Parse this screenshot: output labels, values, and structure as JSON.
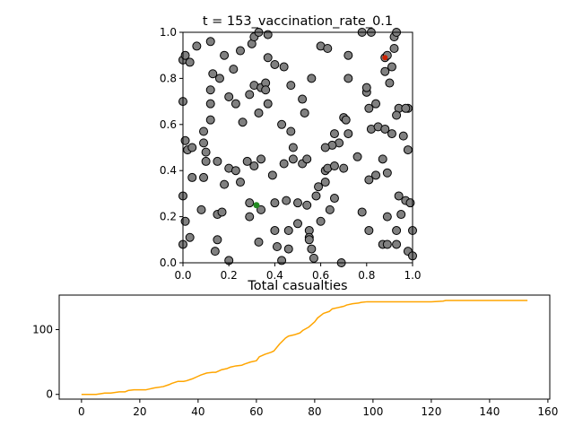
{
  "chart_data": [
    {
      "type": "scatter",
      "title": "t = 153_vaccination_rate_0.1",
      "xlabel": "",
      "ylabel": "",
      "xlim": [
        0,
        1
      ],
      "ylim": [
        0,
        1
      ],
      "x_ticks": [
        "0.0",
        "0.2",
        "0.4",
        "0.6",
        "0.8",
        "1.0"
      ],
      "y_ticks": [
        "0.0",
        "0.2",
        "0.4",
        "0.6",
        "0.8",
        "1.0"
      ],
      "grid": false,
      "legend": "none",
      "colors": {
        "default": "#808080",
        "infected": "#cc2200",
        "vaccinated": "#228b22",
        "edge": "#000000"
      },
      "points": [
        [
          0.0,
          0.88
        ],
        [
          0.01,
          0.9
        ],
        [
          0.03,
          0.87
        ],
        [
          0.06,
          0.94
        ],
        [
          0.12,
          0.96
        ],
        [
          0.18,
          0.9
        ],
        [
          0.22,
          0.84
        ],
        [
          0.25,
          0.92
        ],
        [
          0.3,
          0.95
        ],
        [
          0.31,
          0.98
        ],
        [
          0.33,
          1.0
        ],
        [
          0.37,
          0.99
        ],
        [
          0.37,
          0.89
        ],
        [
          0.4,
          0.86
        ],
        [
          0.44,
          0.85
        ],
        [
          0.13,
          0.82
        ],
        [
          0.16,
          0.8
        ],
        [
          0.31,
          0.77
        ],
        [
          0.34,
          0.76
        ],
        [
          0.36,
          0.78
        ],
        [
          0.36,
          0.75
        ],
        [
          0.47,
          0.77
        ],
        [
          0.56,
          0.8
        ],
        [
          0.6,
          0.94
        ],
        [
          0.63,
          0.93
        ],
        [
          0.72,
          0.9
        ],
        [
          0.78,
          1.0
        ],
        [
          0.82,
          1.0
        ],
        [
          0.88,
          0.89
        ],
        [
          0.89,
          0.9
        ],
        [
          0.92,
          0.93
        ],
        [
          0.92,
          0.98
        ],
        [
          0.93,
          1.0
        ],
        [
          0.0,
          0.7
        ],
        [
          0.12,
          0.75
        ],
        [
          0.12,
          0.69
        ],
        [
          0.2,
          0.72
        ],
        [
          0.23,
          0.69
        ],
        [
          0.29,
          0.73
        ],
        [
          0.37,
          0.69
        ],
        [
          0.52,
          0.71
        ],
        [
          0.53,
          0.65
        ],
        [
          0.72,
          0.8
        ],
        [
          0.8,
          0.74
        ],
        [
          0.8,
          0.76
        ],
        [
          0.81,
          0.67
        ],
        [
          0.84,
          0.69
        ],
        [
          0.88,
          0.83
        ],
        [
          0.9,
          0.78
        ],
        [
          0.91,
          0.85
        ],
        [
          0.94,
          0.67
        ],
        [
          0.98,
          0.67
        ],
        [
          0.97,
          0.67
        ],
        [
          0.12,
          0.62
        ],
        [
          0.09,
          0.57
        ],
        [
          0.09,
          0.52
        ],
        [
          0.01,
          0.53
        ],
        [
          0.02,
          0.49
        ],
        [
          0.04,
          0.5
        ],
        [
          0.1,
          0.48
        ],
        [
          0.26,
          0.61
        ],
        [
          0.33,
          0.65
        ],
        [
          0.43,
          0.6
        ],
        [
          0.47,
          0.57
        ],
        [
          0.7,
          0.63
        ],
        [
          0.71,
          0.62
        ],
        [
          0.72,
          0.56
        ],
        [
          0.68,
          0.52
        ],
        [
          0.65,
          0.51
        ],
        [
          0.62,
          0.5
        ],
        [
          0.66,
          0.56
        ],
        [
          0.82,
          0.58
        ],
        [
          0.85,
          0.59
        ],
        [
          0.88,
          0.58
        ],
        [
          0.91,
          0.56
        ],
        [
          0.93,
          0.64
        ],
        [
          0.96,
          0.55
        ],
        [
          0.98,
          0.49
        ],
        [
          0.1,
          0.44
        ],
        [
          0.15,
          0.44
        ],
        [
          0.09,
          0.37
        ],
        [
          0.04,
          0.37
        ],
        [
          0.18,
          0.34
        ],
        [
          0.2,
          0.41
        ],
        [
          0.23,
          0.4
        ],
        [
          0.25,
          0.35
        ],
        [
          0.28,
          0.44
        ],
        [
          0.31,
          0.42
        ],
        [
          0.34,
          0.45
        ],
        [
          0.39,
          0.38
        ],
        [
          0.44,
          0.43
        ],
        [
          0.48,
          0.45
        ],
        [
          0.48,
          0.5
        ],
        [
          0.52,
          0.43
        ],
        [
          0.54,
          0.45
        ],
        [
          0.59,
          0.33
        ],
        [
          0.62,
          0.35
        ],
        [
          0.62,
          0.4
        ],
        [
          0.63,
          0.41
        ],
        [
          0.66,
          0.42
        ],
        [
          0.7,
          0.41
        ],
        [
          0.76,
          0.46
        ],
        [
          0.81,
          0.36
        ],
        [
          0.84,
          0.38
        ],
        [
          0.87,
          0.45
        ],
        [
          0.89,
          0.39
        ],
        [
          0.0,
          0.29
        ],
        [
          0.01,
          0.18
        ],
        [
          0.03,
          0.11
        ],
        [
          0.08,
          0.23
        ],
        [
          0.15,
          0.21
        ],
        [
          0.17,
          0.22
        ],
        [
          0.15,
          0.1
        ],
        [
          0.14,
          0.05
        ],
        [
          0.2,
          0.01
        ],
        [
          0.29,
          0.2
        ],
        [
          0.29,
          0.26
        ],
        [
          0.34,
          0.23
        ],
        [
          0.4,
          0.26
        ],
        [
          0.4,
          0.14
        ],
        [
          0.45,
          0.27
        ],
        [
          0.46,
          0.14
        ],
        [
          0.5,
          0.17
        ],
        [
          0.5,
          0.26
        ],
        [
          0.54,
          0.25
        ],
        [
          0.58,
          0.29
        ],
        [
          0.6,
          0.18
        ],
        [
          0.64,
          0.23
        ],
        [
          0.66,
          0.28
        ],
        [
          0.78,
          0.22
        ],
        [
          0.81,
          0.14
        ],
        [
          0.89,
          0.2
        ],
        [
          0.93,
          0.14
        ],
        [
          0.94,
          0.29
        ],
        [
          0.95,
          0.21
        ],
        [
          0.97,
          0.27
        ],
        [
          0.99,
          0.26
        ],
        [
          0.33,
          0.09
        ],
        [
          0.41,
          0.07
        ],
        [
          0.46,
          0.06
        ],
        [
          0.55,
          0.14
        ],
        [
          0.55,
          0.11
        ],
        [
          0.55,
          0.1
        ],
        [
          0.56,
          0.06
        ],
        [
          0.57,
          0.02
        ],
        [
          0.69,
          0.0
        ],
        [
          0.43,
          0.01
        ],
        [
          0.87,
          0.08
        ],
        [
          0.89,
          0.08
        ],
        [
          0.93,
          0.08
        ],
        [
          0.98,
          0.05
        ],
        [
          1.0,
          0.03
        ],
        [
          1.0,
          0.14
        ],
        [
          0.0,
          0.08
        ]
      ],
      "infected_points": [
        [
          0.88,
          0.89
        ]
      ],
      "vaccinated_points": [
        [
          0.32,
          0.25
        ]
      ]
    },
    {
      "type": "line",
      "title": "Total casualties",
      "xlabel": "",
      "ylabel": "",
      "xlim": [
        -7.65,
        160.65
      ],
      "ylim": [
        -7.3,
        153.3
      ],
      "x_ticks": [
        0,
        20,
        40,
        60,
        80,
        100,
        120,
        140,
        160
      ],
      "y_ticks": [
        0,
        100
      ],
      "color": "#ffa500",
      "grid": false,
      "legend": "none",
      "x": [
        0,
        5,
        8,
        10,
        13,
        15,
        16,
        18,
        20,
        22,
        23,
        25,
        28,
        30,
        31,
        33,
        35,
        36,
        38,
        40,
        41,
        43,
        45,
        46,
        48,
        50,
        51,
        53,
        55,
        56,
        58,
        60,
        61,
        63,
        65,
        66,
        68,
        70,
        71,
        73,
        75,
        76,
        78,
        80,
        81,
        83,
        85,
        86,
        88,
        90,
        91,
        93,
        95,
        96,
        98,
        100,
        105,
        110,
        115,
        120,
        124,
        125,
        130,
        140,
        150,
        153
      ],
      "values": [
        0,
        0,
        2,
        2,
        4,
        4,
        6,
        7,
        7,
        7,
        8,
        10,
        12,
        15,
        17,
        20,
        20,
        21,
        24,
        28,
        30,
        33,
        34,
        34,
        38,
        40,
        42,
        44,
        45,
        47,
        50,
        52,
        58,
        62,
        65,
        67,
        78,
        87,
        90,
        92,
        95,
        99,
        104,
        112,
        118,
        125,
        128,
        132,
        134,
        136,
        138,
        140,
        141,
        142,
        143,
        143,
        143,
        143,
        143,
        143,
        144,
        145,
        145,
        145,
        145,
        145
      ]
    }
  ]
}
